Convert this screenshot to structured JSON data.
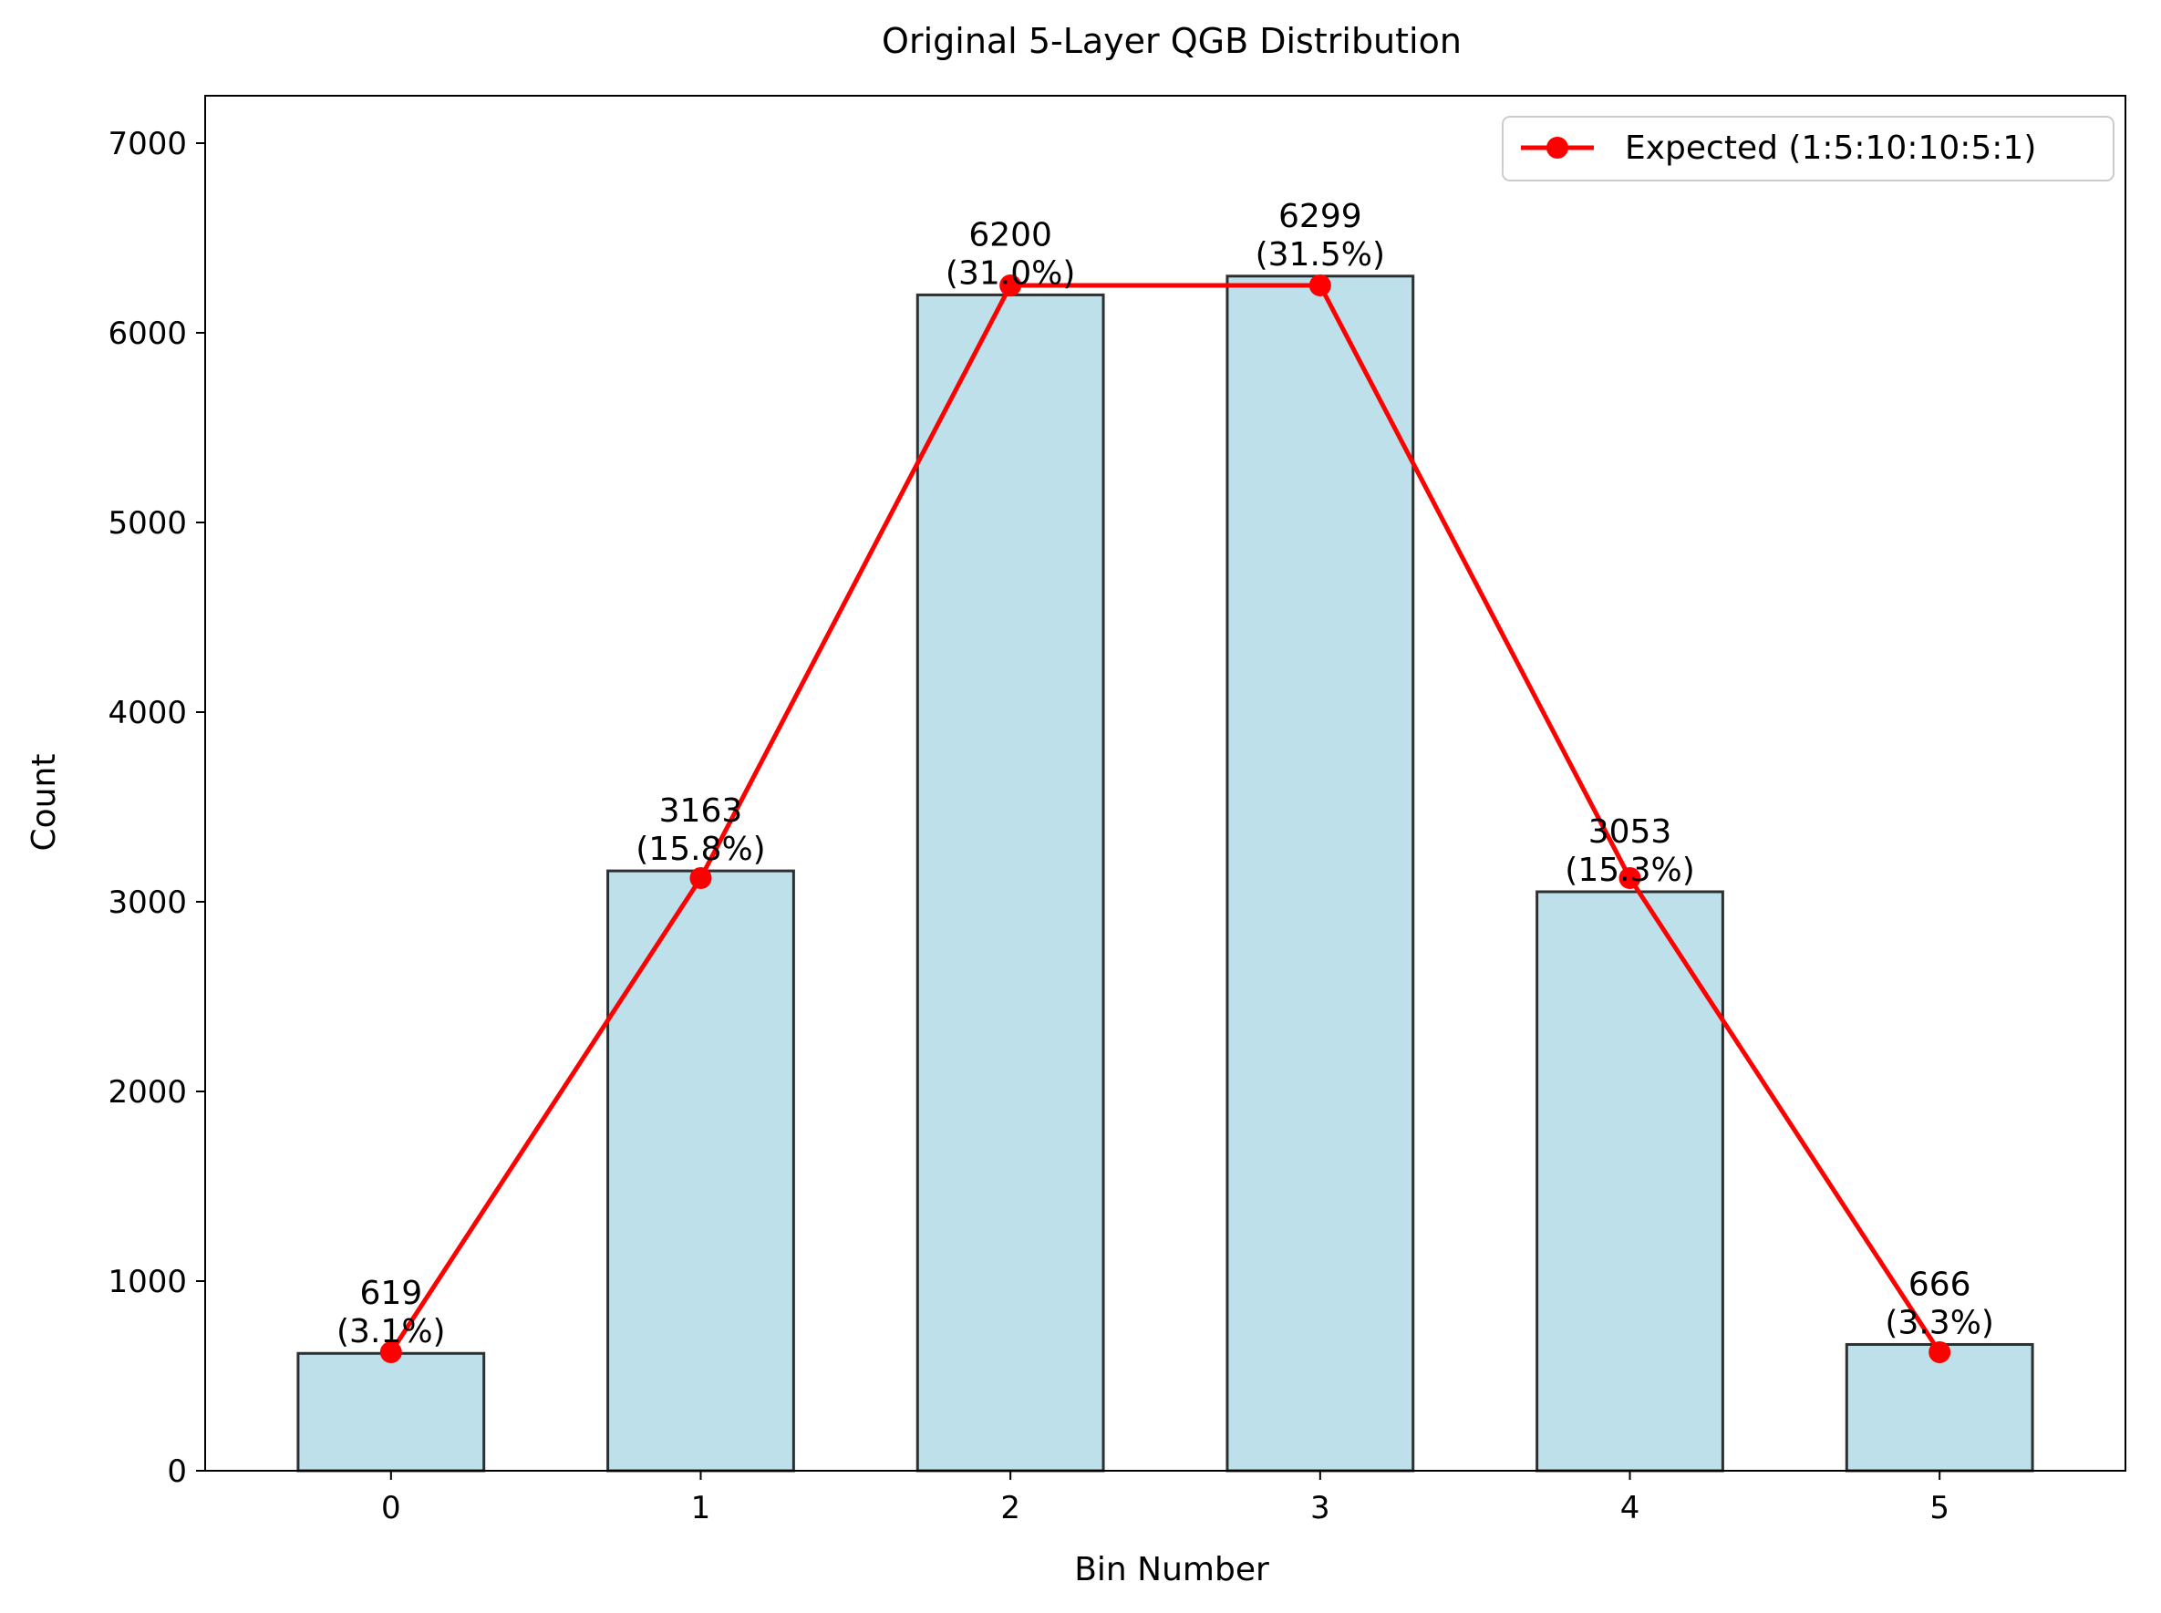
{
  "chart_data": {
    "type": "bar",
    "title": "Original 5-Layer QGB Distribution",
    "xlabel": "Bin Number",
    "ylabel": "Count",
    "categories": [
      "0",
      "1",
      "2",
      "3",
      "4",
      "5"
    ],
    "x": [
      0,
      1,
      2,
      3,
      4,
      5
    ],
    "values": [
      619,
      3163,
      6200,
      6299,
      3053,
      666
    ],
    "value_labels": [
      "619",
      "3163",
      "6200",
      "6299",
      "3053",
      "666"
    ],
    "percent_labels": [
      "(3.1%)",
      "(15.8%)",
      "(31.0%)",
      "(31.5%)",
      "(15.3%)",
      "(3.3%)"
    ],
    "expected_series": {
      "name": "Expected (1:5:10:10:5:1)",
      "values": [
        625,
        3125,
        6250,
        6250,
        3125,
        625
      ],
      "color": "#ff0000"
    },
    "xlim": [
      -0.6,
      5.6
    ],
    "ylim": [
      0,
      7250
    ],
    "yticks": [
      0,
      1000,
      2000,
      3000,
      4000,
      5000,
      6000,
      7000
    ],
    "ytick_labels": [
      "0",
      "1000",
      "2000",
      "3000",
      "4000",
      "5000",
      "6000",
      "7000"
    ],
    "bar_color": "#add8e6",
    "bar_edge_color": "#000000",
    "legend_position": "top-right",
    "grid": false
  }
}
